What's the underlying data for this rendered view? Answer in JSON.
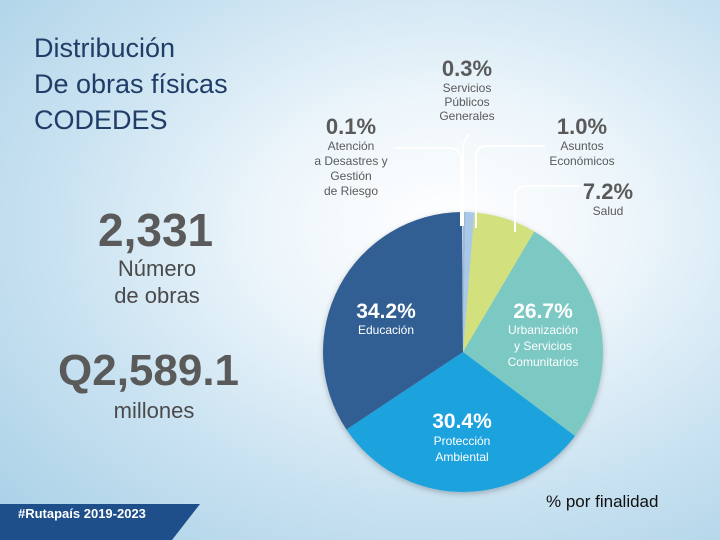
{
  "title": {
    "line1": "Distribución",
    "line2": "De obras físicas",
    "line3": "CODEDES"
  },
  "stats": {
    "count_value": "2,331",
    "count_label_1": "Número",
    "count_label_2": "de obras",
    "amount_value": "Q2,589.1",
    "amount_label": "millones"
  },
  "hashtag": "#Rutapaís 2019-2023",
  "footer_note": "% por finalidad",
  "chart_data": {
    "type": "pie",
    "slices": [
      {
        "label": "Servicios Públicos Generales",
        "value": 0.3,
        "value_label": "0.3%",
        "color": "#9fb9dc"
      },
      {
        "label": "Asuntos Económicos",
        "value": 1.0,
        "value_label": "1.0%",
        "color": "#aac9e8"
      },
      {
        "label": "Salud",
        "value": 7.2,
        "value_label": "7.2%",
        "color": "#d3e07e"
      },
      {
        "label": "Urbanización y Servicios Comunitarios",
        "value": 26.7,
        "value_label": "26.7%",
        "color": "#7cc8c2"
      },
      {
        "label": "Protección Ambiental",
        "value": 30.4,
        "value_label": "30.4%",
        "color": "#1fa2dd"
      },
      {
        "label": "Educación",
        "value": 34.2,
        "value_label": "34.2%",
        "color": "#325f93"
      },
      {
        "label": "Atención a Desastres y Gestión de Riesgo",
        "value": 0.1,
        "value_label": "0.1%",
        "color": "#d6e4ef"
      }
    ]
  }
}
